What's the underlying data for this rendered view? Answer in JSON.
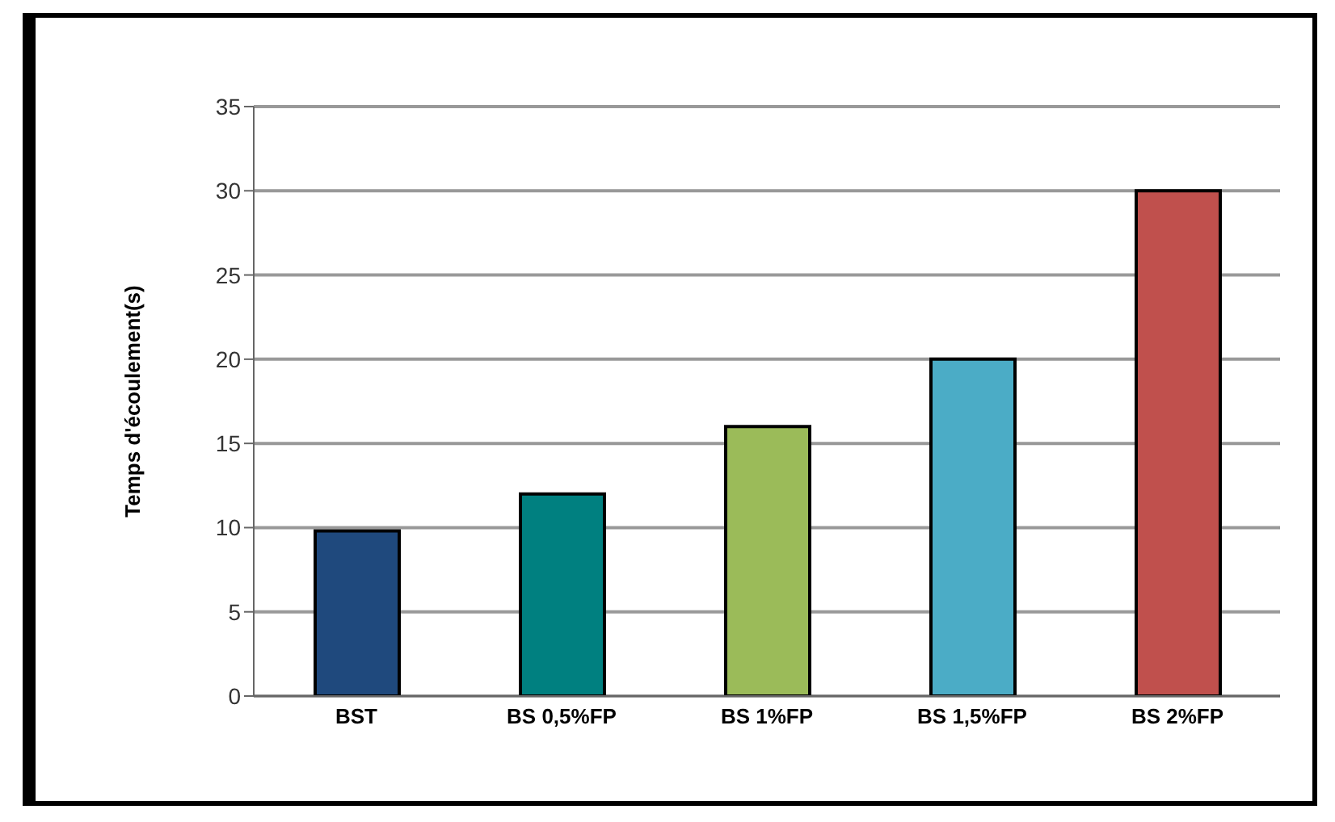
{
  "chart_data": {
    "type": "bar",
    "ylabel": "Temps d'écoulement(s)",
    "categories": [
      "BST",
      "BS 0,5%FP",
      "BS 1%FP",
      "BS 1,5%FP",
      "BS 2%FP"
    ],
    "values": [
      9.8,
      12,
      16,
      20,
      30
    ],
    "colors": [
      "#1f497d",
      "#008080",
      "#9bbb59",
      "#4bacc6",
      "#c0504d"
    ],
    "ylim": [
      0,
      35
    ],
    "yticks": [
      0,
      5,
      10,
      15,
      20,
      25,
      30,
      35
    ],
    "grid": "y"
  }
}
